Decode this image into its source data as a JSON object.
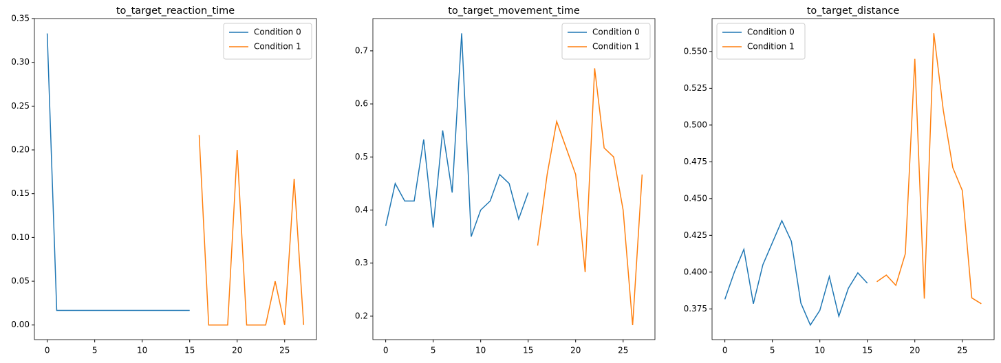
{
  "chart_data": [
    {
      "type": "line",
      "title": "to_target_reaction_time",
      "x": [
        0,
        1,
        2,
        3,
        4,
        5,
        6,
        7,
        8,
        9,
        10,
        11,
        12,
        13,
        14,
        15,
        16,
        17,
        18,
        19,
        20,
        21,
        22,
        23,
        24,
        25,
        26,
        27
      ],
      "series": [
        {
          "name": "Condition 0",
          "color": "#1f77b4",
          "values": [
            0.333,
            0.0167,
            0.0167,
            0.0167,
            0.0167,
            0.0167,
            0.0167,
            0.0167,
            0.0167,
            0.0167,
            0.0167,
            0.0167,
            0.0167,
            0.0167,
            0.0167,
            0.0167,
            null,
            null,
            null,
            null,
            null,
            null,
            null,
            null,
            null,
            null,
            null,
            null
          ]
        },
        {
          "name": "Condition 1",
          "color": "#ff7f0e",
          "values": [
            null,
            null,
            null,
            null,
            null,
            null,
            null,
            null,
            null,
            null,
            null,
            null,
            null,
            null,
            null,
            null,
            0.217,
            0,
            0,
            0,
            0.2,
            0,
            0,
            0,
            0.05,
            0,
            0.167,
            0
          ]
        }
      ],
      "xlim": [
        -1.35,
        28.35
      ],
      "xticks": [
        0,
        5,
        10,
        15,
        20,
        25
      ],
      "ylim": [
        -0.0167,
        0.35
      ],
      "yticks": [
        {
          "value": 0,
          "label": "0.00"
        },
        0.05,
        {
          "value": 0.1,
          "label": "0.10"
        },
        0.15,
        {
          "value": 0.2,
          "label": "0.20"
        },
        0.25,
        {
          "value": 0.3,
          "label": "0.30"
        },
        0.35
      ],
      "legend": "upper right"
    },
    {
      "type": "line",
      "title": "to_target_movement_time",
      "x": [
        0,
        1,
        2,
        3,
        4,
        5,
        6,
        7,
        8,
        9,
        10,
        11,
        12,
        13,
        14,
        15,
        16,
        17,
        18,
        19,
        20,
        21,
        22,
        23,
        24,
        25,
        26,
        27
      ],
      "series": [
        {
          "name": "Condition 0",
          "color": "#1f77b4",
          "values": [
            0.37,
            0.45,
            0.417,
            0.417,
            0.533,
            0.367,
            0.55,
            0.433,
            0.733,
            0.35,
            0.4,
            0.417,
            0.467,
            0.45,
            0.383,
            0.433,
            null,
            null,
            null,
            null,
            null,
            null,
            null,
            null,
            null,
            null,
            null,
            null
          ]
        },
        {
          "name": "Condition 1",
          "color": "#ff7f0e",
          "values": [
            null,
            null,
            null,
            null,
            null,
            null,
            null,
            null,
            null,
            null,
            null,
            null,
            null,
            null,
            null,
            null,
            0.333,
            0.467,
            0.567,
            0.517,
            0.467,
            0.283,
            0.667,
            0.517,
            0.5,
            0.4,
            0.183,
            0.467
          ]
        }
      ],
      "xlim": [
        -1.35,
        28.35
      ],
      "xticks": [
        0,
        5,
        10,
        15,
        20,
        25
      ],
      "ylim": [
        0.1558,
        0.7608
      ],
      "yticks": [
        0.2,
        0.3,
        0.4,
        0.5,
        0.6,
        0.7
      ],
      "legend": "upper right"
    },
    {
      "type": "line",
      "title": "to_target_distance",
      "x": [
        0,
        1,
        2,
        3,
        4,
        5,
        6,
        7,
        8,
        9,
        10,
        11,
        12,
        13,
        14,
        15,
        16,
        17,
        18,
        19,
        20,
        21,
        22,
        23,
        24,
        25,
        26,
        27
      ],
      "series": [
        {
          "name": "Condition 0",
          "color": "#1f77b4",
          "values": [
            0.3815,
            0.4,
            0.4155,
            0.3785,
            0.405,
            0.42,
            0.435,
            0.421,
            0.379,
            0.364,
            0.374,
            0.397,
            0.37,
            0.389,
            0.3995,
            0.3925,
            null,
            null,
            null,
            null,
            null,
            null,
            null,
            null,
            null,
            null,
            null,
            null
          ]
        },
        {
          "name": "Condition 1",
          "color": "#ff7f0e",
          "values": [
            null,
            null,
            null,
            null,
            null,
            null,
            null,
            null,
            null,
            null,
            null,
            null,
            null,
            null,
            null,
            null,
            0.3935,
            0.398,
            0.391,
            0.4125,
            0.545,
            0.382,
            0.5625,
            0.51,
            0.471,
            0.4555,
            0.3825,
            0.3785
          ]
        }
      ],
      "xlim": [
        -1.35,
        28.35
      ],
      "xticks": [
        0,
        5,
        10,
        15,
        20,
        25
      ],
      "ylim": [
        0.3541,
        0.5724
      ],
      "yticks": [
        0.375,
        {
          "value": 0.4,
          "label": "0.400"
        },
        0.425,
        {
          "value": 0.45,
          "label": "0.450"
        },
        0.475,
        {
          "value": 0.5,
          "label": "0.500"
        },
        0.525,
        {
          "value": 0.55,
          "label": "0.550"
        }
      ],
      "legend": "upper left"
    }
  ]
}
